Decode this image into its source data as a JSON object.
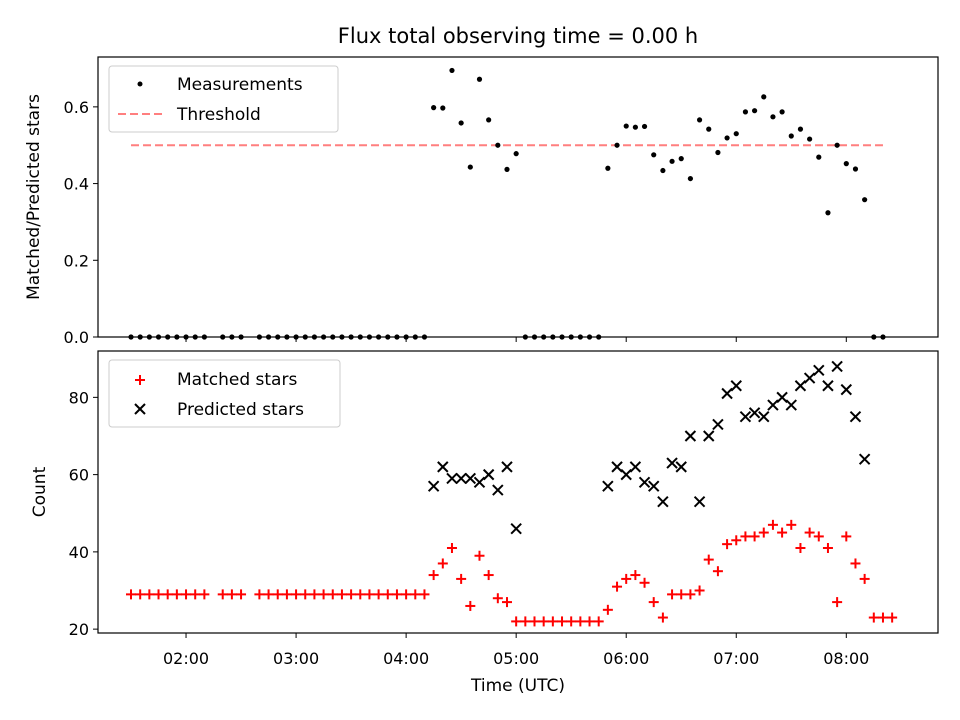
{
  "chart_data": [
    {
      "type": "scatter",
      "title": "Flux total observing time = 0.00 h",
      "xlabel": "",
      "ylabel": "Matched/Predicted stars",
      "xlim": [
        "01:12",
        "08:50"
      ],
      "ylim": [
        0,
        0.73
      ],
      "yticks": [
        0,
        0.2,
        0.4,
        0.6
      ],
      "ytick_labels": [
        "0.0",
        "0.2",
        "0.4",
        "0.6"
      ],
      "legend_position": "upper-left",
      "series": [
        {
          "name": "Measurements",
          "marker": "dot",
          "color": "#000000",
          "points": [
            [
              "01:30",
              0
            ],
            [
              "01:35",
              0
            ],
            [
              "01:40",
              0
            ],
            [
              "01:45",
              0
            ],
            [
              "01:50",
              0
            ],
            [
              "01:55",
              0
            ],
            [
              "02:00",
              0
            ],
            [
              "02:05",
              0
            ],
            [
              "02:10",
              0
            ],
            [
              "02:20",
              0
            ],
            [
              "02:25",
              0
            ],
            [
              "02:30",
              0
            ],
            [
              "02:40",
              0
            ],
            [
              "02:45",
              0
            ],
            [
              "02:50",
              0
            ],
            [
              "02:55",
              0
            ],
            [
              "03:00",
              0
            ],
            [
              "03:05",
              0
            ],
            [
              "03:10",
              0
            ],
            [
              "03:15",
              0
            ],
            [
              "03:20",
              0
            ],
            [
              "03:25",
              0
            ],
            [
              "03:30",
              0
            ],
            [
              "03:35",
              0
            ],
            [
              "03:40",
              0
            ],
            [
              "03:45",
              0
            ],
            [
              "03:50",
              0
            ],
            [
              "03:55",
              0
            ],
            [
              "04:00",
              0
            ],
            [
              "04:05",
              0
            ],
            [
              "04:10",
              0
            ],
            [
              "04:15",
              0.598
            ],
            [
              "04:20",
              0.597
            ],
            [
              "04:25",
              0.695
            ],
            [
              "04:30",
              0.558
            ],
            [
              "04:35",
              0.443
            ],
            [
              "04:40",
              0.672
            ],
            [
              "04:45",
              0.566
            ],
            [
              "04:50",
              0.5
            ],
            [
              "04:55",
              0.437
            ],
            [
              "05:00",
              0.478
            ],
            [
              "05:05",
              0
            ],
            [
              "05:10",
              0
            ],
            [
              "05:15",
              0
            ],
            [
              "05:20",
              0
            ],
            [
              "05:25",
              0
            ],
            [
              "05:30",
              0
            ],
            [
              "05:35",
              0
            ],
            [
              "05:40",
              0
            ],
            [
              "05:45",
              0
            ],
            [
              "05:50",
              0.44
            ],
            [
              "05:55",
              0.5
            ],
            [
              "06:00",
              0.55
            ],
            [
              "06:05",
              0.547
            ],
            [
              "06:10",
              0.549
            ],
            [
              "06:15",
              0.475
            ],
            [
              "06:20",
              0.434
            ],
            [
              "06:25",
              0.458
            ],
            [
              "06:30",
              0.465
            ],
            [
              "06:35",
              0.413
            ],
            [
              "06:40",
              0.566
            ],
            [
              "06:45",
              0.542
            ],
            [
              "06:50",
              0.481
            ],
            [
              "06:55",
              0.519
            ],
            [
              "07:00",
              0.53
            ],
            [
              "07:05",
              0.587
            ],
            [
              "07:10",
              0.59
            ],
            [
              "07:15",
              0.626
            ],
            [
              "07:20",
              0.574
            ],
            [
              "07:25",
              0.587
            ],
            [
              "07:30",
              0.524
            ],
            [
              "07:35",
              0.542
            ],
            [
              "07:40",
              0.516
            ],
            [
              "07:45",
              0.469
            ],
            [
              "07:50",
              0.324
            ],
            [
              "07:55",
              0.5
            ],
            [
              "08:00",
              0.452
            ],
            [
              "08:05",
              0.438
            ],
            [
              "08:10",
              0.358
            ],
            [
              "08:15",
              0
            ],
            [
              "08:20",
              0
            ]
          ]
        },
        {
          "name": "Threshold",
          "style": "dashed-line",
          "color": "#ff7f7f",
          "points": [
            [
              "01:30",
              0.5
            ],
            [
              "08:20",
              0.5
            ]
          ]
        }
      ]
    },
    {
      "type": "scatter",
      "title": "",
      "xlabel": "Time (UTC)",
      "ylabel": "Count",
      "xlim": [
        "01:12",
        "08:50"
      ],
      "ylim": [
        19,
        92
      ],
      "yticks": [
        20,
        40,
        60,
        80
      ],
      "ytick_labels": [
        "20",
        "40",
        "60",
        "80"
      ],
      "xticks": [
        "02:00",
        "03:00",
        "04:00",
        "05:00",
        "06:00",
        "07:00",
        "08:00"
      ],
      "legend_position": "upper-left",
      "series": [
        {
          "name": "Matched stars",
          "marker": "plus",
          "color": "#ff0000",
          "points": [
            [
              "01:30",
              29
            ],
            [
              "01:35",
              29
            ],
            [
              "01:40",
              29
            ],
            [
              "01:45",
              29
            ],
            [
              "01:50",
              29
            ],
            [
              "01:55",
              29
            ],
            [
              "02:00",
              29
            ],
            [
              "02:05",
              29
            ],
            [
              "02:10",
              29
            ],
            [
              "02:20",
              29
            ],
            [
              "02:25",
              29
            ],
            [
              "02:30",
              29
            ],
            [
              "02:40",
              29
            ],
            [
              "02:45",
              29
            ],
            [
              "02:50",
              29
            ],
            [
              "02:55",
              29
            ],
            [
              "03:00",
              29
            ],
            [
              "03:05",
              29
            ],
            [
              "03:10",
              29
            ],
            [
              "03:15",
              29
            ],
            [
              "03:20",
              29
            ],
            [
              "03:25",
              29
            ],
            [
              "03:30",
              29
            ],
            [
              "03:35",
              29
            ],
            [
              "03:40",
              29
            ],
            [
              "03:45",
              29
            ],
            [
              "03:50",
              29
            ],
            [
              "03:55",
              29
            ],
            [
              "04:00",
              29
            ],
            [
              "04:05",
              29
            ],
            [
              "04:10",
              29
            ],
            [
              "04:15",
              34
            ],
            [
              "04:20",
              37
            ],
            [
              "04:25",
              41
            ],
            [
              "04:30",
              33
            ],
            [
              "04:35",
              26
            ],
            [
              "04:40",
              39
            ],
            [
              "04:45",
              34
            ],
            [
              "04:50",
              28
            ],
            [
              "04:55",
              27
            ],
            [
              "05:00",
              22
            ],
            [
              "05:05",
              22
            ],
            [
              "05:10",
              22
            ],
            [
              "05:15",
              22
            ],
            [
              "05:20",
              22
            ],
            [
              "05:25",
              22
            ],
            [
              "05:30",
              22
            ],
            [
              "05:35",
              22
            ],
            [
              "05:40",
              22
            ],
            [
              "05:45",
              22
            ],
            [
              "05:50",
              25
            ],
            [
              "05:55",
              31
            ],
            [
              "06:00",
              33
            ],
            [
              "06:05",
              34
            ],
            [
              "06:10",
              32
            ],
            [
              "06:15",
              27
            ],
            [
              "06:20",
              23
            ],
            [
              "06:25",
              29
            ],
            [
              "06:30",
              29
            ],
            [
              "06:35",
              29
            ],
            [
              "06:40",
              30
            ],
            [
              "06:45",
              38
            ],
            [
              "06:50",
              35
            ],
            [
              "06:55",
              42
            ],
            [
              "07:00",
              43
            ],
            [
              "07:05",
              44
            ],
            [
              "07:10",
              44
            ],
            [
              "07:15",
              45
            ],
            [
              "07:20",
              47
            ],
            [
              "07:25",
              45
            ],
            [
              "07:30",
              47
            ],
            [
              "07:35",
              41
            ],
            [
              "07:40",
              45
            ],
            [
              "07:45",
              44
            ],
            [
              "07:50",
              41
            ],
            [
              "07:55",
              27
            ],
            [
              "08:00",
              44
            ],
            [
              "08:05",
              37
            ],
            [
              "08:10",
              33
            ],
            [
              "08:15",
              23
            ],
            [
              "08:20",
              23
            ],
            [
              "08:25",
              23
            ]
          ]
        },
        {
          "name": "Predicted stars",
          "marker": "x",
          "color": "#000000",
          "points": [
            [
              "04:15",
              57
            ],
            [
              "04:20",
              62
            ],
            [
              "04:25",
              59
            ],
            [
              "04:30",
              59
            ],
            [
              "04:35",
              59
            ],
            [
              "04:40",
              58
            ],
            [
              "04:45",
              60
            ],
            [
              "04:50",
              56
            ],
            [
              "04:55",
              62
            ],
            [
              "05:00",
              46
            ],
            [
              "05:50",
              57
            ],
            [
              "05:55",
              62
            ],
            [
              "06:00",
              60
            ],
            [
              "06:05",
              62
            ],
            [
              "06:10",
              58
            ],
            [
              "06:15",
              57
            ],
            [
              "06:20",
              53
            ],
            [
              "06:25",
              63
            ],
            [
              "06:30",
              62
            ],
            [
              "06:35",
              70
            ],
            [
              "06:40",
              53
            ],
            [
              "06:45",
              70
            ],
            [
              "06:50",
              73
            ],
            [
              "06:55",
              81
            ],
            [
              "07:00",
              83
            ],
            [
              "07:05",
              75
            ],
            [
              "07:10",
              76
            ],
            [
              "07:15",
              75
            ],
            [
              "07:20",
              78
            ],
            [
              "07:25",
              80
            ],
            [
              "07:30",
              78
            ],
            [
              "07:35",
              83
            ],
            [
              "07:40",
              85
            ],
            [
              "07:45",
              87
            ],
            [
              "07:50",
              83
            ],
            [
              "07:55",
              88
            ],
            [
              "08:00",
              82
            ],
            [
              "08:05",
              75
            ],
            [
              "08:10",
              64
            ]
          ]
        }
      ]
    }
  ]
}
